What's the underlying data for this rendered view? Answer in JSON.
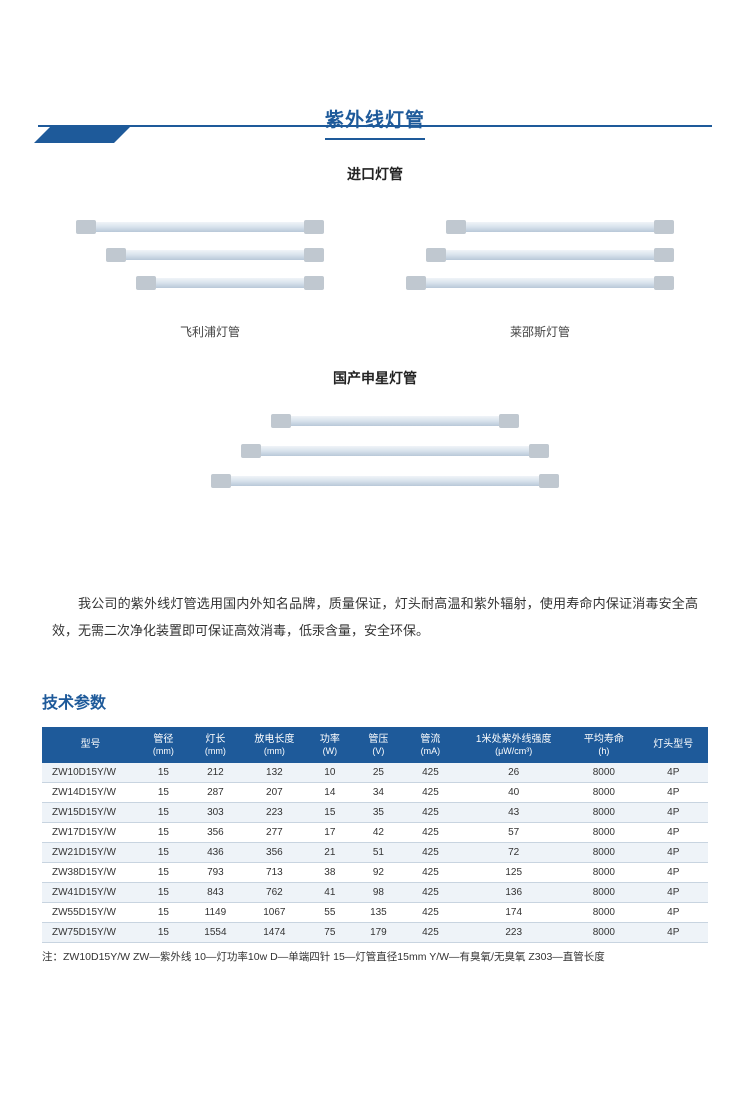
{
  "header": {
    "accent_color": "#1e5a9a"
  },
  "title": "紫外线灯管",
  "section_imported": "进口灯管",
  "lamp_groups": {
    "left_label": "飞利浦灯管",
    "right_label": "莱邵斯灯管"
  },
  "section_domestic": "国产申星灯管",
  "description": "我公司的紫外线灯管选用国内外知名品牌，质量保证，灯头耐高温和紫外辐射，使用寿命内保证消毒安全高效，无需二次净化装置即可保证高效消毒，低汞含量，安全环保。",
  "tech_title": "技术参数",
  "table": {
    "columns": [
      {
        "label": "型号",
        "unit": ""
      },
      {
        "label": "管径",
        "unit": "(mm)"
      },
      {
        "label": "灯长",
        "unit": "(mm)"
      },
      {
        "label": "放电长度",
        "unit": "(mm)"
      },
      {
        "label": "功率",
        "unit": "(W)"
      },
      {
        "label": "管压",
        "unit": "(V)"
      },
      {
        "label": "管流",
        "unit": "(mA)"
      },
      {
        "label": "1米处紫外线强度",
        "unit": "(μW/cm³)"
      },
      {
        "label": "平均寿命",
        "unit": "(h)"
      },
      {
        "label": "灯头型号",
        "unit": ""
      }
    ],
    "rows": [
      [
        "ZW10D15Y/W",
        "15",
        "212",
        "132",
        "10",
        "25",
        "425",
        "26",
        "8000",
        "4P"
      ],
      [
        "ZW14D15Y/W",
        "15",
        "287",
        "207",
        "14",
        "34",
        "425",
        "40",
        "8000",
        "4P"
      ],
      [
        "ZW15D15Y/W",
        "15",
        "303",
        "223",
        "15",
        "35",
        "425",
        "43",
        "8000",
        "4P"
      ],
      [
        "ZW17D15Y/W",
        "15",
        "356",
        "277",
        "17",
        "42",
        "425",
        "57",
        "8000",
        "4P"
      ],
      [
        "ZW21D15Y/W",
        "15",
        "436",
        "356",
        "21",
        "51",
        "425",
        "72",
        "8000",
        "4P"
      ],
      [
        "ZW38D15Y/W",
        "15",
        "793",
        "713",
        "38",
        "92",
        "425",
        "125",
        "8000",
        "4P"
      ],
      [
        "ZW41D15Y/W",
        "15",
        "843",
        "762",
        "41",
        "98",
        "425",
        "136",
        "8000",
        "4P"
      ],
      [
        "ZW55D15Y/W",
        "15",
        "1149",
        "1067",
        "55",
        "135",
        "425",
        "174",
        "8000",
        "4P"
      ],
      [
        "ZW75D15Y/W",
        "15",
        "1554",
        "1474",
        "75",
        "179",
        "425",
        "223",
        "8000",
        "4P"
      ]
    ],
    "col_widths": [
      "14%",
      "7%",
      "8%",
      "9%",
      "7%",
      "7%",
      "8%",
      "16%",
      "10%",
      "10%"
    ],
    "header_bg": "#1e5a9a",
    "header_color": "#ffffff",
    "row_odd_bg": "#eef3f8",
    "row_even_bg": "#ffffff",
    "border_color": "#c8d4e0"
  },
  "note": "注：ZW10D15Y/W ZW—紫外线 10—灯功率10w D—单端四针 15—灯管直径15mm Y/W—有臭氧/无臭氧 Z303—直管长度"
}
